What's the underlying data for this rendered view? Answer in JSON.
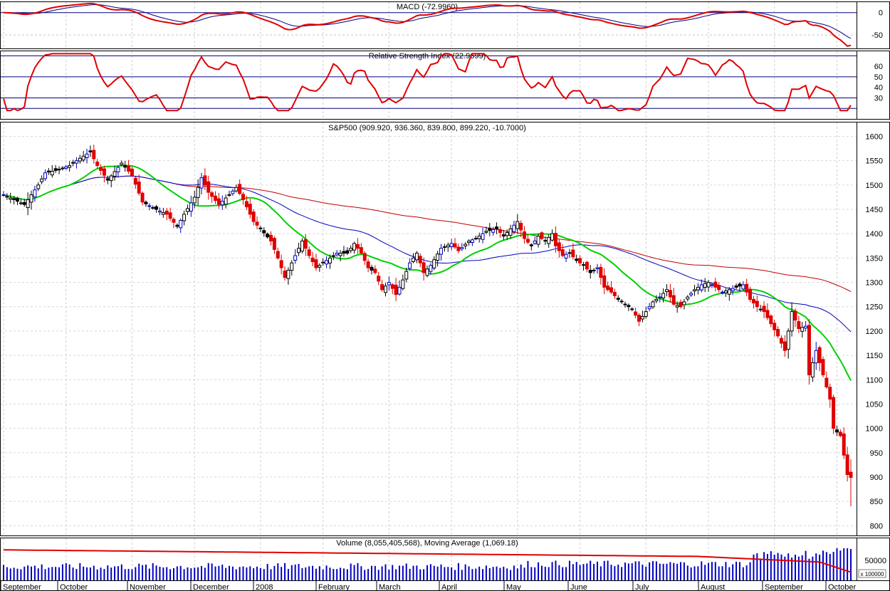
{
  "chart_data": {
    "type": "candlestick",
    "panels": {
      "macd": {
        "title": "MACD (-72.9960)",
        "yticks": [
          0,
          -50
        ],
        "ylim": [
          -80,
          25
        ],
        "colors": {
          "macd": "#e00000",
          "signal": "#000080"
        }
      },
      "rsi": {
        "title": "Relative Strength Index (22.9699)",
        "yticks": [
          60,
          50,
          40,
          30
        ],
        "ylim": [
          10,
          75
        ],
        "reference_lines": [
          20,
          30,
          50,
          70
        ],
        "colors": {
          "rsi": "#e00000",
          "reference": "#000080"
        }
      },
      "price": {
        "title": "S&P500 (909.920, 936.360, 839.800, 899.220, -10.7000)",
        "yticks": [
          1600,
          1550,
          1500,
          1450,
          1400,
          1350,
          1300,
          1250,
          1200,
          1150,
          1100,
          1050,
          1000,
          950,
          900,
          850,
          800
        ],
        "ylim": [
          780,
          1630
        ],
        "colors": {
          "up_candle": "#0000c0",
          "down_candle": "#e00000",
          "neutral": "#000000",
          "ma_short": "#00d000",
          "ma_mid": "#0000c0",
          "ma_long": "#c00000"
        }
      },
      "volume": {
        "title": "Volume (8,055,405,568), Moving Average (1,069.18)",
        "yticks": [
          "50000"
        ],
        "scale_tag": "x 100000",
        "colors": {
          "bars": "#0000c0",
          "average": "#e00000"
        }
      }
    },
    "x_labels": [
      "September",
      "October",
      "November",
      "December",
      "2008",
      "February",
      "March",
      "April",
      "May",
      "June",
      "July",
      "August",
      "September",
      "October"
    ],
    "close_anchors": [
      {
        "i": 0,
        "v": 1480
      },
      {
        "i": 3,
        "v": 1470
      },
      {
        "i": 6,
        "v": 1460
      },
      {
        "i": 10,
        "v": 1500
      },
      {
        "i": 12,
        "v": 1525
      },
      {
        "i": 15,
        "v": 1530
      },
      {
        "i": 19,
        "v": 1540
      },
      {
        "i": 22,
        "v": 1555
      },
      {
        "i": 25,
        "v": 1568
      },
      {
        "i": 27,
        "v": 1540
      },
      {
        "i": 30,
        "v": 1510
      },
      {
        "i": 34,
        "v": 1545
      },
      {
        "i": 37,
        "v": 1520
      },
      {
        "i": 40,
        "v": 1465
      },
      {
        "i": 44,
        "v": 1450
      },
      {
        "i": 47,
        "v": 1440
      },
      {
        "i": 50,
        "v": 1415
      },
      {
        "i": 52,
        "v": 1440
      },
      {
        "i": 55,
        "v": 1475
      },
      {
        "i": 57,
        "v": 1515
      },
      {
        "i": 59,
        "v": 1485
      },
      {
        "i": 62,
        "v": 1460
      },
      {
        "i": 65,
        "v": 1480
      },
      {
        "i": 67,
        "v": 1495
      },
      {
        "i": 69,
        "v": 1470
      },
      {
        "i": 72,
        "v": 1425
      },
      {
        "i": 74,
        "v": 1410
      },
      {
        "i": 77,
        "v": 1385
      },
      {
        "i": 79,
        "v": 1350
      },
      {
        "i": 81,
        "v": 1310
      },
      {
        "i": 83,
        "v": 1340
      },
      {
        "i": 86,
        "v": 1385
      },
      {
        "i": 88,
        "v": 1355
      },
      {
        "i": 90,
        "v": 1330
      },
      {
        "i": 93,
        "v": 1345
      },
      {
        "i": 96,
        "v": 1360
      },
      {
        "i": 99,
        "v": 1360
      },
      {
        "i": 101,
        "v": 1380
      },
      {
        "i": 103,
        "v": 1360
      },
      {
        "i": 105,
        "v": 1330
      },
      {
        "i": 107,
        "v": 1320
      },
      {
        "i": 109,
        "v": 1285
      },
      {
        "i": 111,
        "v": 1300
      },
      {
        "i": 113,
        "v": 1275
      },
      {
        "i": 115,
        "v": 1305
      },
      {
        "i": 117,
        "v": 1340
      },
      {
        "i": 119,
        "v": 1360
      },
      {
        "i": 121,
        "v": 1320
      },
      {
        "i": 123,
        "v": 1335
      },
      {
        "i": 126,
        "v": 1370
      },
      {
        "i": 129,
        "v": 1380
      },
      {
        "i": 131,
        "v": 1365
      },
      {
        "i": 134,
        "v": 1385
      },
      {
        "i": 136,
        "v": 1390
      },
      {
        "i": 139,
        "v": 1405
      },
      {
        "i": 142,
        "v": 1410
      },
      {
        "i": 144,
        "v": 1395
      },
      {
        "i": 146,
        "v": 1410
      },
      {
        "i": 148,
        "v": 1425
      },
      {
        "i": 150,
        "v": 1390
      },
      {
        "i": 152,
        "v": 1375
      },
      {
        "i": 154,
        "v": 1395
      },
      {
        "i": 156,
        "v": 1385
      },
      {
        "i": 158,
        "v": 1400
      },
      {
        "i": 159,
        "v": 1375
      },
      {
        "i": 161,
        "v": 1355
      },
      {
        "i": 163,
        "v": 1360
      },
      {
        "i": 165,
        "v": 1345
      },
      {
        "i": 167,
        "v": 1335
      },
      {
        "i": 169,
        "v": 1320
      },
      {
        "i": 171,
        "v": 1330
      },
      {
        "i": 173,
        "v": 1290
      },
      {
        "i": 175,
        "v": 1280
      },
      {
        "i": 177,
        "v": 1265
      },
      {
        "i": 179,
        "v": 1255
      },
      {
        "i": 181,
        "v": 1245
      },
      {
        "i": 183,
        "v": 1220
      },
      {
        "i": 185,
        "v": 1240
      },
      {
        "i": 187,
        "v": 1260
      },
      {
        "i": 189,
        "v": 1270
      },
      {
        "i": 191,
        "v": 1285
      },
      {
        "i": 193,
        "v": 1255
      },
      {
        "i": 195,
        "v": 1250
      },
      {
        "i": 197,
        "v": 1270
      },
      {
        "i": 199,
        "v": 1285
      },
      {
        "i": 201,
        "v": 1295
      },
      {
        "i": 203,
        "v": 1300
      },
      {
        "i": 205,
        "v": 1290
      },
      {
        "i": 207,
        "v": 1280
      },
      {
        "i": 209,
        "v": 1285
      },
      {
        "i": 211,
        "v": 1290
      },
      {
        "i": 213,
        "v": 1295
      },
      {
        "i": 215,
        "v": 1265
      },
      {
        "i": 217,
        "v": 1250
      },
      {
        "i": 219,
        "v": 1240
      },
      {
        "i": 221,
        "v": 1215
      },
      {
        "i": 223,
        "v": 1190
      },
      {
        "i": 225,
        "v": 1160
      },
      {
        "i": 227,
        "v": 1240
      },
      {
        "i": 229,
        "v": 1205
      },
      {
        "i": 231,
        "v": 1210
      },
      {
        "i": 232,
        "v": 1110
      },
      {
        "i": 234,
        "v": 1160
      },
      {
        "i": 236,
        "v": 1110
      },
      {
        "i": 238,
        "v": 1060
      },
      {
        "i": 239,
        "v": 1000
      },
      {
        "i": 241,
        "v": 985
      },
      {
        "i": 243,
        "v": 905
      },
      {
        "i": 244,
        "v": 899
      }
    ],
    "n_bars": 245,
    "last": {
      "open": 909.92,
      "high": 936.36,
      "low": 839.8,
      "close": 899.22,
      "change": -10.7
    }
  }
}
